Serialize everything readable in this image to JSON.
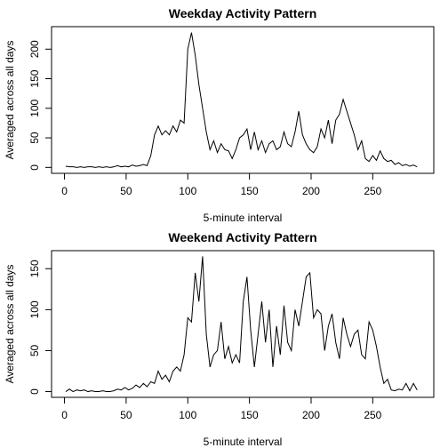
{
  "chart_data": [
    {
      "type": "line",
      "title": "Weekday Activity Pattern",
      "x_label": "5-minute interval",
      "y_label": "Averaged across all days",
      "xlim": [
        -10.5,
        299.5
      ],
      "ylim": [
        -10,
        238
      ],
      "xticks": [
        0,
        50,
        100,
        150,
        200,
        250
      ],
      "yticks": [
        0,
        50,
        100,
        150,
        200
      ],
      "series": [
        {
          "name": "Weekday",
          "color": "#000000",
          "x": [
            1,
            4,
            7,
            10,
            13,
            16,
            19,
            22,
            25,
            28,
            31,
            34,
            37,
            40,
            43,
            46,
            49,
            52,
            55,
            58,
            61,
            64,
            67,
            70,
            73,
            76,
            79,
            82,
            85,
            88,
            91,
            94,
            97,
            100,
            103,
            106,
            109,
            112,
            115,
            118,
            121,
            124,
            127,
            130,
            133,
            136,
            139,
            142,
            145,
            148,
            151,
            154,
            157,
            160,
            163,
            166,
            169,
            172,
            175,
            178,
            181,
            184,
            187,
            190,
            193,
            196,
            199,
            202,
            205,
            208,
            211,
            214,
            217,
            220,
            223,
            226,
            229,
            232,
            235,
            238,
            241,
            244,
            247,
            250,
            253,
            256,
            259,
            262,
            265,
            268,
            271,
            274,
            277,
            280,
            283,
            286
          ],
          "values": [
            2,
            1,
            1,
            0,
            1,
            0,
            1,
            1,
            0,
            1,
            0,
            1,
            0,
            1,
            3,
            1,
            2,
            1,
            4,
            2,
            3,
            5,
            3,
            20,
            55,
            70,
            55,
            62,
            55,
            70,
            60,
            80,
            75,
            200,
            228,
            190,
            140,
            100,
            60,
            30,
            45,
            25,
            40,
            30,
            28,
            15,
            30,
            50,
            55,
            65,
            30,
            60,
            30,
            45,
            25,
            40,
            45,
            30,
            35,
            60,
            40,
            35,
            60,
            95,
            55,
            40,
            30,
            25,
            35,
            65,
            50,
            80,
            40,
            80,
            90,
            115,
            95,
            75,
            55,
            30,
            45,
            15,
            10,
            20,
            12,
            28,
            15,
            10,
            12,
            5,
            8,
            3,
            5,
            2,
            4,
            1
          ]
        }
      ]
    },
    {
      "type": "line",
      "title": "Weekend Activity Pattern",
      "x_label": "5-minute interval",
      "y_label": "Averaged across all days",
      "xlim": [
        -10.5,
        299.5
      ],
      "ylim": [
        -7,
        172
      ],
      "xticks": [
        0,
        50,
        100,
        150,
        200,
        250
      ],
      "yticks": [
        0,
        50,
        100,
        150
      ],
      "series": [
        {
          "name": "Weekend",
          "color": "#000000",
          "x": [
            1,
            4,
            7,
            10,
            13,
            16,
            19,
            22,
            25,
            28,
            31,
            34,
            37,
            40,
            43,
            46,
            49,
            52,
            55,
            58,
            61,
            64,
            67,
            70,
            73,
            76,
            79,
            82,
            85,
            88,
            91,
            94,
            97,
            100,
            103,
            106,
            109,
            112,
            115,
            118,
            121,
            124,
            127,
            130,
            133,
            136,
            139,
            142,
            145,
            148,
            151,
            154,
            157,
            160,
            163,
            166,
            169,
            172,
            175,
            178,
            181,
            184,
            187,
            190,
            193,
            196,
            199,
            202,
            205,
            208,
            211,
            214,
            217,
            220,
            223,
            226,
            229,
            232,
            235,
            238,
            241,
            244,
            247,
            250,
            253,
            256,
            259,
            262,
            265,
            268,
            271,
            274,
            277,
            280,
            283,
            286
          ],
          "values": [
            0,
            3,
            0,
            2,
            1,
            2,
            0,
            1,
            0,
            0,
            1,
            0,
            0,
            1,
            3,
            2,
            5,
            2,
            4,
            8,
            5,
            10,
            6,
            12,
            10,
            25,
            15,
            20,
            12,
            25,
            30,
            25,
            45,
            90,
            85,
            145,
            110,
            165,
            70,
            30,
            45,
            50,
            85,
            40,
            55,
            35,
            45,
            35,
            110,
            140,
            75,
            30,
            70,
            110,
            60,
            100,
            30,
            80,
            45,
            105,
            60,
            50,
            100,
            80,
            110,
            140,
            145,
            90,
            100,
            95,
            50,
            80,
            95,
            60,
            40,
            90,
            70,
            55,
            70,
            75,
            45,
            40,
            85,
            75,
            55,
            30,
            10,
            15,
            2,
            1,
            3,
            2,
            10,
            1,
            10,
            2
          ]
        }
      ]
    }
  ]
}
